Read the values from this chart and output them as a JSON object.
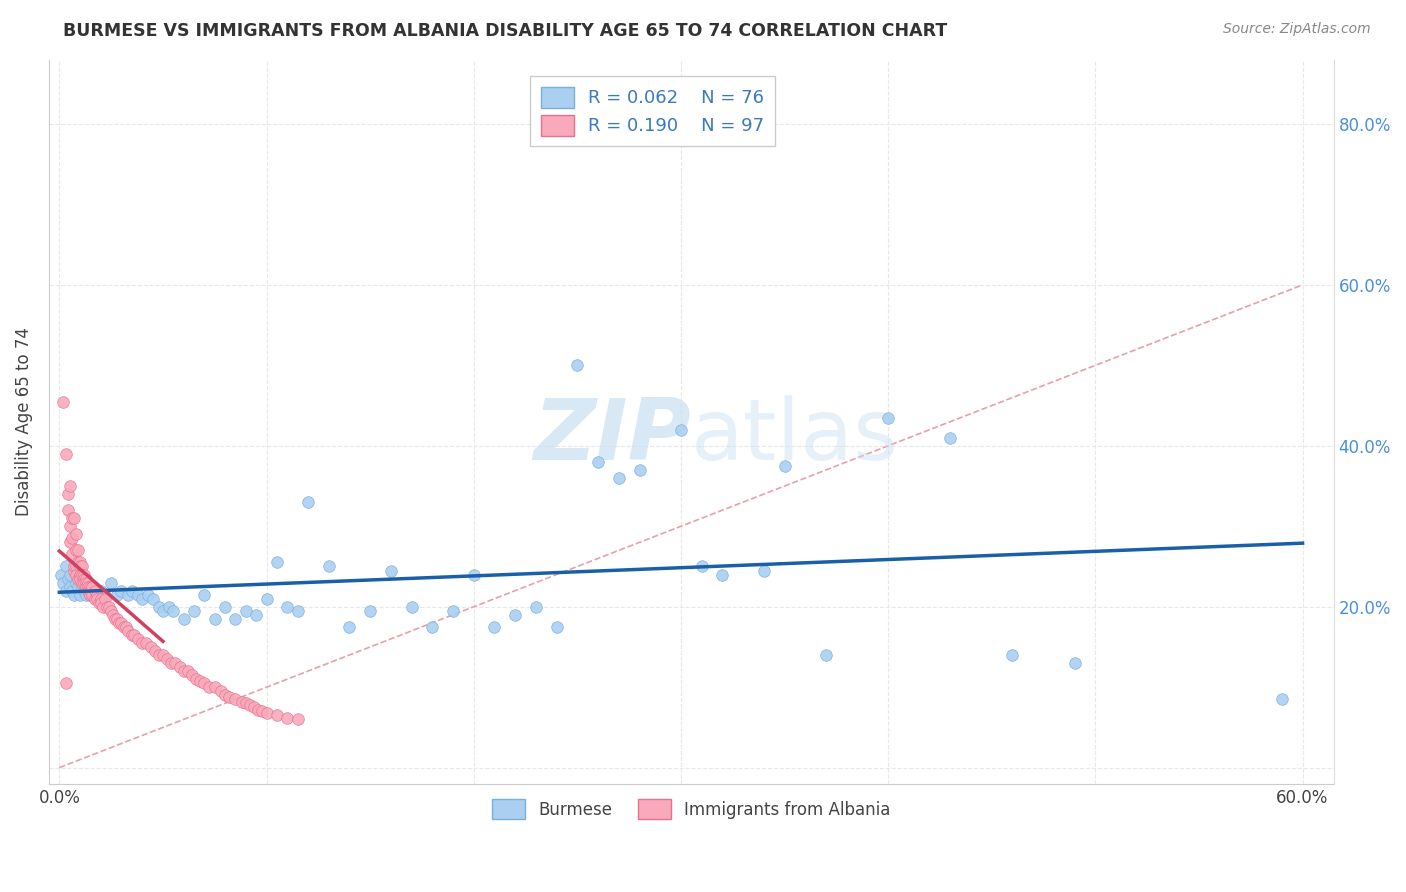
{
  "title": "BURMESE VS IMMIGRANTS FROM ALBANIA DISABILITY AGE 65 TO 74 CORRELATION CHART",
  "source": "Source: ZipAtlas.com",
  "ylabel": "Disability Age 65 to 74",
  "xlim": [
    0.0,
    0.6
  ],
  "ylim": [
    0.0,
    0.88
  ],
  "xtick_vals": [
    0.0,
    0.1,
    0.2,
    0.3,
    0.4,
    0.5,
    0.6
  ],
  "xticklabels": [
    "0.0%",
    "",
    "",
    "",
    "",
    "",
    "60.0%"
  ],
  "ytick_vals": [
    0.0,
    0.2,
    0.4,
    0.6,
    0.8
  ],
  "yticklabels_right": [
    "",
    "20.0%",
    "40.0%",
    "60.0%",
    "80.0%"
  ],
  "burmese_color": "#aacff0",
  "burmese_edge": "#7aaedd",
  "albania_color": "#f8aabb",
  "albania_edge": "#e87090",
  "burmese_line_color": "#1a5fa8",
  "albania_line_color": "#d04060",
  "diagonal_color": "#e8a0a8",
  "diagonal_linestyle": "--",
  "R_burmese": "0.062",
  "N_burmese": "76",
  "R_albania": "0.190",
  "N_albania": "97",
  "legend_text_color": "#3a7abf",
  "watermark_color": "#c8dff0",
  "grid_color": "#e8e8e8",
  "burmese_x": [
    0.001,
    0.002,
    0.003,
    0.003,
    0.004,
    0.005,
    0.005,
    0.006,
    0.007,
    0.008,
    0.009,
    0.01,
    0.01,
    0.011,
    0.012,
    0.013,
    0.014,
    0.015,
    0.016,
    0.017,
    0.018,
    0.02,
    0.022,
    0.025,
    0.028,
    0.03,
    0.033,
    0.035,
    0.038,
    0.04,
    0.043,
    0.045,
    0.048,
    0.05,
    0.053,
    0.055,
    0.06,
    0.065,
    0.07,
    0.075,
    0.08,
    0.085,
    0.09,
    0.095,
    0.1,
    0.105,
    0.11,
    0.115,
    0.12,
    0.13,
    0.14,
    0.15,
    0.16,
    0.17,
    0.18,
    0.19,
    0.2,
    0.21,
    0.22,
    0.23,
    0.24,
    0.25,
    0.26,
    0.27,
    0.28,
    0.3,
    0.31,
    0.32,
    0.34,
    0.35,
    0.37,
    0.4,
    0.43,
    0.46,
    0.49,
    0.59
  ],
  "burmese_y": [
    0.24,
    0.23,
    0.25,
    0.22,
    0.235,
    0.225,
    0.24,
    0.22,
    0.215,
    0.23,
    0.225,
    0.215,
    0.235,
    0.225,
    0.22,
    0.215,
    0.22,
    0.215,
    0.225,
    0.22,
    0.21,
    0.22,
    0.215,
    0.23,
    0.215,
    0.22,
    0.215,
    0.22,
    0.215,
    0.21,
    0.215,
    0.21,
    0.2,
    0.195,
    0.2,
    0.195,
    0.185,
    0.195,
    0.215,
    0.185,
    0.2,
    0.185,
    0.195,
    0.19,
    0.21,
    0.255,
    0.2,
    0.195,
    0.33,
    0.25,
    0.175,
    0.195,
    0.245,
    0.2,
    0.175,
    0.195,
    0.24,
    0.175,
    0.19,
    0.2,
    0.175,
    0.5,
    0.38,
    0.36,
    0.37,
    0.42,
    0.25,
    0.24,
    0.245,
    0.375,
    0.14,
    0.435,
    0.41,
    0.14,
    0.13,
    0.085
  ],
  "albania_x": [
    0.002,
    0.003,
    0.003,
    0.004,
    0.004,
    0.005,
    0.005,
    0.005,
    0.006,
    0.006,
    0.006,
    0.007,
    0.007,
    0.007,
    0.008,
    0.008,
    0.008,
    0.008,
    0.009,
    0.009,
    0.009,
    0.01,
    0.01,
    0.01,
    0.01,
    0.011,
    0.011,
    0.011,
    0.012,
    0.012,
    0.012,
    0.013,
    0.013,
    0.013,
    0.014,
    0.014,
    0.014,
    0.015,
    0.015,
    0.015,
    0.016,
    0.016,
    0.017,
    0.017,
    0.018,
    0.018,
    0.019,
    0.02,
    0.02,
    0.021,
    0.022,
    0.023,
    0.024,
    0.025,
    0.026,
    0.027,
    0.028,
    0.029,
    0.03,
    0.031,
    0.032,
    0.033,
    0.035,
    0.036,
    0.038,
    0.04,
    0.042,
    0.044,
    0.046,
    0.048,
    0.05,
    0.052,
    0.054,
    0.056,
    0.058,
    0.06,
    0.062,
    0.064,
    0.066,
    0.068,
    0.07,
    0.072,
    0.075,
    0.078,
    0.08,
    0.082,
    0.085,
    0.088,
    0.09,
    0.092,
    0.094,
    0.096,
    0.098,
    0.1,
    0.105,
    0.11,
    0.115
  ],
  "albania_y": [
    0.455,
    0.105,
    0.39,
    0.34,
    0.32,
    0.35,
    0.28,
    0.3,
    0.285,
    0.265,
    0.31,
    0.245,
    0.31,
    0.25,
    0.27,
    0.29,
    0.25,
    0.24,
    0.255,
    0.27,
    0.235,
    0.255,
    0.25,
    0.24,
    0.235,
    0.25,
    0.24,
    0.23,
    0.24,
    0.235,
    0.23,
    0.235,
    0.23,
    0.225,
    0.23,
    0.225,
    0.22,
    0.225,
    0.22,
    0.215,
    0.225,
    0.215,
    0.22,
    0.21,
    0.215,
    0.21,
    0.205,
    0.21,
    0.205,
    0.2,
    0.21,
    0.2,
    0.2,
    0.195,
    0.19,
    0.185,
    0.185,
    0.18,
    0.18,
    0.175,
    0.175,
    0.17,
    0.165,
    0.165,
    0.16,
    0.155,
    0.155,
    0.15,
    0.145,
    0.14,
    0.14,
    0.135,
    0.13,
    0.13,
    0.125,
    0.12,
    0.12,
    0.115,
    0.11,
    0.108,
    0.105,
    0.1,
    0.1,
    0.095,
    0.09,
    0.088,
    0.085,
    0.082,
    0.08,
    0.078,
    0.075,
    0.072,
    0.07,
    0.068,
    0.065,
    0.062,
    0.06
  ]
}
